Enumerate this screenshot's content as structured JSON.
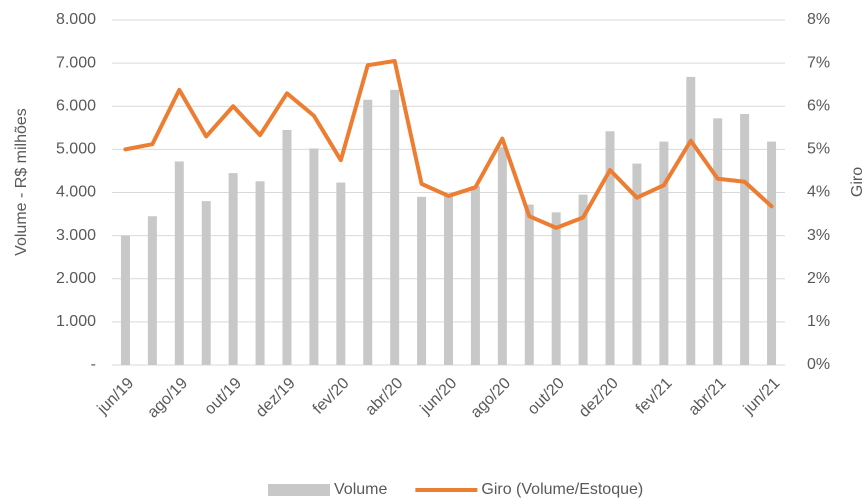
{
  "chart_data": {
    "type": "bar_line",
    "categories": [
      "jun/19",
      null,
      "ago/19",
      null,
      "out/19",
      null,
      "dez/19",
      null,
      "fev/20",
      null,
      "abr/20",
      null,
      "jun/20",
      null,
      "ago/20",
      null,
      "out/20",
      null,
      "dez/20",
      null,
      "fev/21",
      null,
      "abr/21",
      null,
      "jun/21"
    ],
    "y_label": "Volume - R$ milhões",
    "y2_label": "Giro",
    "series": [
      {
        "name": "Volume",
        "type": "bar",
        "color": "#c8c8c8",
        "values": [
          3000,
          3450,
          4720,
          3800,
          4450,
          4260,
          5450,
          5020,
          4230,
          6150,
          6380,
          3900,
          3950,
          4150,
          5050,
          3720,
          3540,
          3950,
          5420,
          4670,
          5180,
          6680,
          5720,
          5820,
          5180
        ]
      },
      {
        "name": "Giro (Volume/Estoque)",
        "type": "line",
        "axis": "y2",
        "color": "#ed7d31",
        "values": [
          5.0,
          5.12,
          6.38,
          5.3,
          6.0,
          5.33,
          6.3,
          5.78,
          4.75,
          6.95,
          7.05,
          4.2,
          3.92,
          4.12,
          5.25,
          3.45,
          3.18,
          3.42,
          4.52,
          3.88,
          4.17,
          5.2,
          4.32,
          4.25,
          3.68
        ]
      }
    ],
    "ylim": [
      0,
      8000
    ],
    "yticks": [
      {
        "value": 0,
        "label": "-"
      },
      {
        "value": 1000,
        "label": "1.000"
      },
      {
        "value": 2000,
        "label": "2.000"
      },
      {
        "value": 3000,
        "label": "3.000"
      },
      {
        "value": 4000,
        "label": "4.000"
      },
      {
        "value": 5000,
        "label": "5.000"
      },
      {
        "value": 6000,
        "label": "6.000"
      },
      {
        "value": 7000,
        "label": "7.000"
      },
      {
        "value": 8000,
        "label": "8.000"
      }
    ],
    "y2lim": [
      0,
      8
    ],
    "y2ticks": [
      {
        "value": 0,
        "label": "0%"
      },
      {
        "value": 1,
        "label": "1%"
      },
      {
        "value": 2,
        "label": "2%"
      },
      {
        "value": 3,
        "label": "3%"
      },
      {
        "value": 4,
        "label": "4%"
      },
      {
        "value": 5,
        "label": "5%"
      },
      {
        "value": 6,
        "label": "6%"
      },
      {
        "value": 7,
        "label": "7%"
      },
      {
        "value": 8,
        "label": "8%"
      }
    ],
    "grid": true,
    "legend": "bottom"
  }
}
